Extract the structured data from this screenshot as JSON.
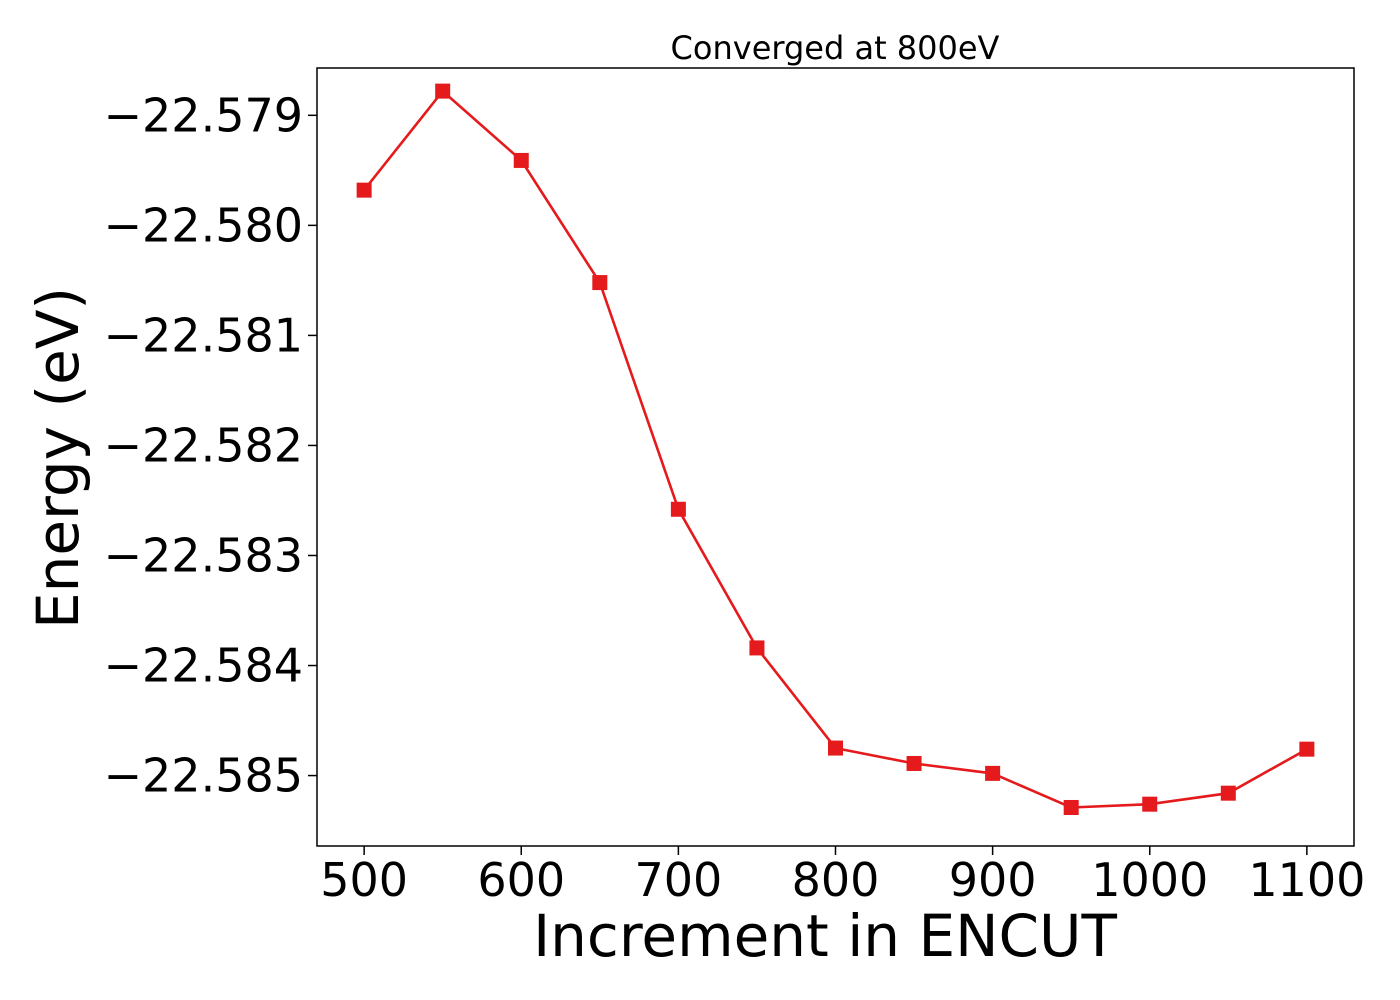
{
  "chart_data": {
    "type": "line",
    "title": "Converged at 800eV",
    "xlabel": "Increment in ENCUT",
    "ylabel": "Energy (eV)",
    "xlim": [
      470,
      1130
    ],
    "ylim": [
      -22.58564,
      -22.57857
    ],
    "xticks": [
      500,
      600,
      700,
      800,
      900,
      1000,
      1100
    ],
    "yticks": [
      -22.579,
      -22.58,
      -22.581,
      -22.582,
      -22.583,
      -22.584,
      -22.585
    ],
    "ytick_labels": [
      "−22.579",
      "−22.580",
      "−22.581",
      "−22.582",
      "−22.583",
      "−22.584",
      "−22.585"
    ],
    "grid": false,
    "legend": "none",
    "color": "#e41a1c",
    "marker": "square",
    "series": [
      {
        "x": [
          500,
          550,
          600,
          650,
          700,
          750,
          800,
          850,
          900,
          950,
          1000,
          1050,
          1100
        ],
        "y": [
          -22.57968,
          -22.57878,
          -22.57941,
          -22.58052,
          -22.58258,
          -22.58384,
          -22.58475,
          -22.58489,
          -22.58498,
          -22.58529,
          -22.58526,
          -22.58516,
          -22.58476
        ]
      }
    ]
  }
}
